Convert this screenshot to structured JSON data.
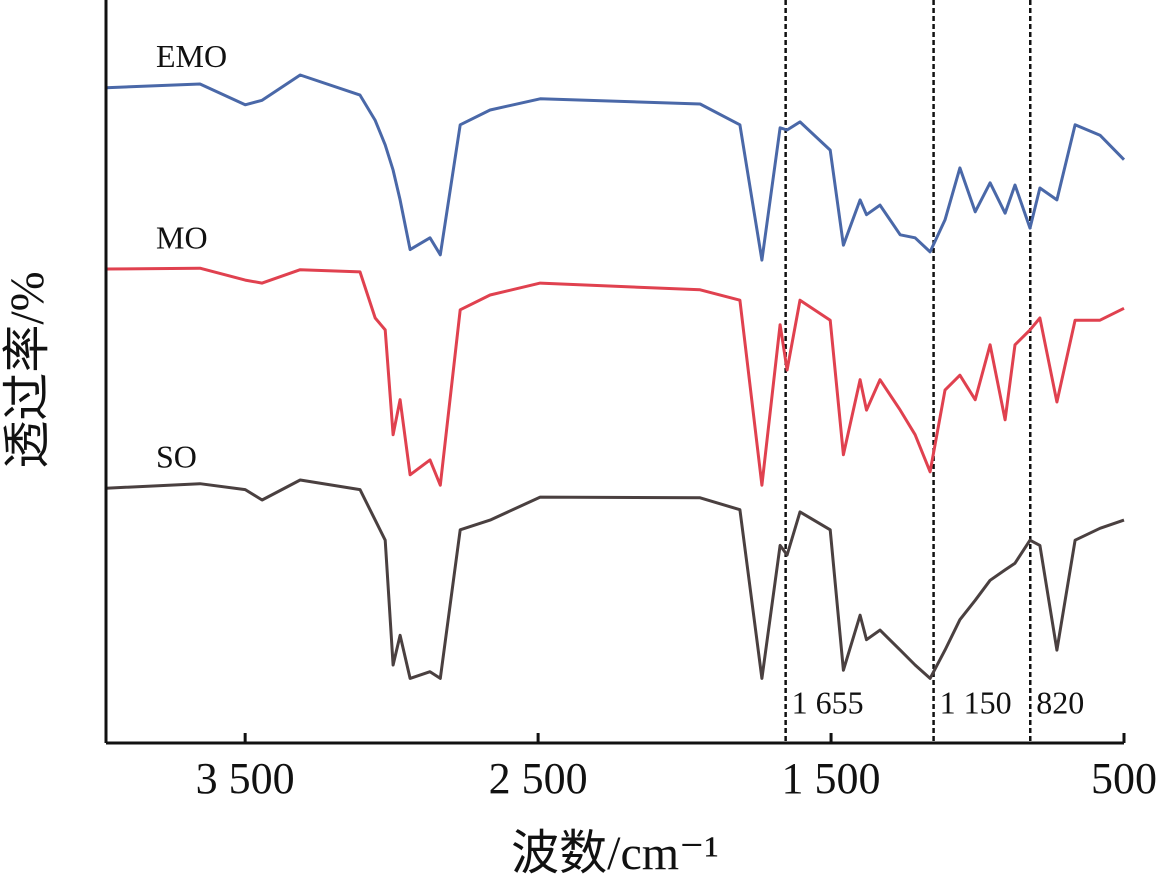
{
  "chart_data": {
    "type": "line",
    "x_label": "波数/cm⁻¹",
    "y_label": "透过率/%",
    "xlim": [
      3975,
      500
    ],
    "ylim": [
      0,
      100
    ],
    "xticks": [
      {
        "value": 3500,
        "label": "3 500"
      },
      {
        "value": 2500,
        "label": "2 500"
      },
      {
        "value": 1500,
        "label": "1 500"
      },
      500
    ],
    "x": [
      3975,
      3654,
      3500,
      3442,
      3312,
      3108,
      3056,
      3022,
      2995,
      2971,
      2937,
      2869,
      2834,
      2766,
      2664,
      2493,
      1947,
      1811,
      1736,
      1674,
      1650,
      1606,
      1503,
      1458,
      1401,
      1379,
      1333,
      1264,
      1213,
      1162,
      1111,
      1060,
      1008,
      957,
      906,
      872,
      821,
      787,
      729,
      667,
      582,
      500
    ],
    "series": [
      {
        "name": "EMO",
        "color": "#4a68a8",
        "values": [
          88.2,
          88.7,
          85.9,
          86.5,
          89.9,
          87.2,
          83.8,
          80.5,
          77.1,
          73.1,
          66.4,
          68.0,
          65.7,
          83.2,
          85.2,
          86.7,
          86.0,
          83.2,
          65.0,
          82.8,
          82.5,
          83.6,
          79.8,
          67.0,
          73.1,
          71.1,
          72.4,
          68.4,
          68.0,
          66.1,
          70.4,
          77.4,
          71.5,
          75.4,
          71.3,
          75.1,
          69.3,
          74.7,
          73.1,
          83.2,
          81.8,
          78.5
        ]
      },
      {
        "name": "MO",
        "color": "#e0414f",
        "values": [
          63.8,
          63.9,
          62.3,
          61.9,
          63.7,
          63.4,
          57.2,
          55.6,
          41.5,
          46.2,
          36.1,
          38.1,
          34.7,
          58.3,
          60.3,
          61.9,
          61.0,
          59.6,
          34.7,
          56.3,
          50.2,
          59.6,
          56.9,
          38.8,
          48.9,
          44.8,
          48.9,
          44.8,
          41.5,
          36.5,
          47.5,
          49.5,
          46.2,
          53.6,
          43.5,
          53.6,
          55.6,
          57.2,
          45.9,
          56.9,
          56.9,
          58.5
        ]
      },
      {
        "name": "SO",
        "color": "#4a4040",
        "values": [
          34.3,
          34.9,
          34.1,
          32.7,
          35.4,
          34.1,
          30.0,
          27.3,
          10.5,
          14.5,
          8.7,
          9.6,
          8.7,
          28.7,
          30.0,
          33.1,
          33.0,
          31.4,
          8.7,
          26.6,
          25.3,
          31.1,
          28.7,
          9.8,
          17.2,
          13.9,
          15.2,
          12.5,
          10.5,
          8.7,
          12.5,
          16.6,
          19.2,
          21.9,
          23.3,
          24.2,
          27.3,
          26.6,
          12.5,
          27.3,
          28.9,
          30.0
        ]
      }
    ],
    "reference_lines": [
      {
        "value": 1655,
        "label": "1 655"
      },
      {
        "value": 1150,
        "label": "1 150"
      },
      {
        "value": 820,
        "label": "820"
      }
    ]
  }
}
